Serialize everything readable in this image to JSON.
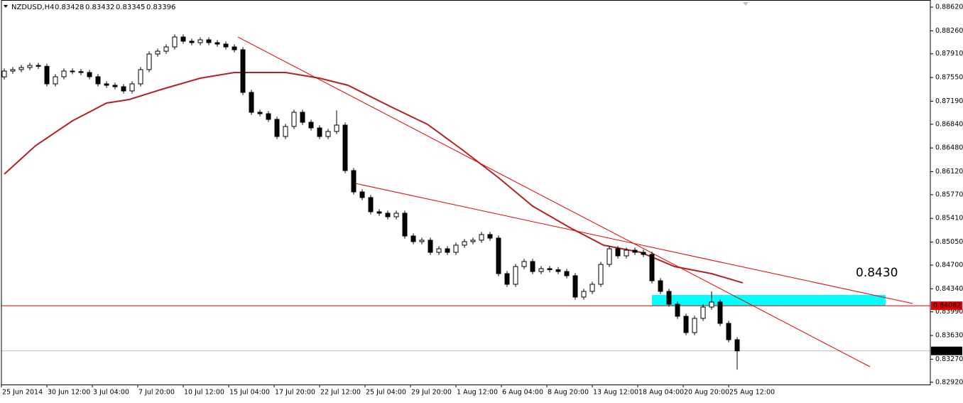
{
  "chart_data": {
    "type": "candlestick",
    "title": "NZDUSD,H4",
    "quote": [
      0.83428,
      0.83432,
      0.83345,
      0.83396
    ],
    "x": [
      1,
      4,
      7,
      10,
      13,
      16,
      19,
      22,
      25,
      28,
      31,
      34,
      37,
      40,
      43,
      46,
      49,
      52,
      55,
      58,
      61,
      64,
      67,
      70,
      73,
      76,
      79,
      82,
      85,
      88,
      91,
      94,
      97,
      100,
      103,
      106,
      109,
      112,
      115,
      118,
      121,
      124,
      127,
      130,
      133,
      136,
      139,
      142,
      145,
      148,
      151,
      154,
      157,
      160,
      163,
      166,
      169,
      172,
      175,
      178,
      181,
      184,
      187,
      190,
      193,
      196,
      199,
      202,
      205,
      208,
      211,
      214,
      217,
      220,
      223,
      226,
      229,
      232,
      235,
      238,
      241,
      244,
      247,
      250,
      253,
      256,
      259
    ],
    "open": [
      0.8756,
      0.87648,
      0.8767,
      0.87702,
      0.87734,
      0.8772,
      0.87454,
      0.87562,
      0.87648,
      0.8764,
      0.87626,
      0.87562,
      0.87454,
      0.87432,
      0.8741,
      0.87346,
      0.87454,
      0.8767,
      0.87907,
      0.8795,
      0.88015,
      0.88166,
      0.88102,
      0.8808,
      0.88123,
      0.8808,
      0.88058,
      0.88015,
      0.87972,
      0.87324,
      0.87022,
      0.87,
      0.86914,
      0.86654,
      0.86806,
      0.87022,
      0.8687,
      0.86784,
      0.86654,
      0.8673,
      0.86827,
      0.86136,
      0.85812,
      0.85726,
      0.8551,
      0.85488,
      0.85434,
      0.85488,
      0.85142,
      0.85056,
      0.85078,
      0.84894,
      0.84948,
      0.84894,
      0.85002,
      0.85056,
      0.85078,
      0.85164,
      0.8511,
      0.8457,
      0.84408,
      0.84678,
      0.84754,
      0.84602,
      0.84646,
      0.8463,
      0.84602,
      0.84538,
      0.84214,
      0.843,
      0.84408,
      0.8471,
      0.84948,
      0.8484,
      0.84926,
      0.84894,
      0.84862,
      0.84462,
      0.843,
      0.84106,
      0.83922,
      0.83674,
      0.8389,
      0.84062,
      0.84138,
      0.83814,
      0.83566
    ],
    "high": [
      0.87688,
      0.8771,
      0.87742,
      0.87774,
      0.87774,
      0.8776,
      0.87602,
      0.87688,
      0.87688,
      0.8768,
      0.87666,
      0.87602,
      0.87494,
      0.87472,
      0.8745,
      0.87494,
      0.8771,
      0.87947,
      0.8799,
      0.88055,
      0.88206,
      0.88206,
      0.88142,
      0.88163,
      0.88163,
      0.8812,
      0.88098,
      0.88055,
      0.88012,
      0.87364,
      0.87062,
      0.8704,
      0.86954,
      0.86846,
      0.87062,
      0.87062,
      0.8691,
      0.86824,
      0.8677,
      0.8705,
      0.86867,
      0.86176,
      0.85852,
      0.85766,
      0.8555,
      0.85528,
      0.85528,
      0.85528,
      0.85182,
      0.85118,
      0.85118,
      0.84988,
      0.84988,
      0.85042,
      0.85096,
      0.85118,
      0.85204,
      0.85204,
      0.8515,
      0.8461,
      0.84718,
      0.84794,
      0.84794,
      0.84686,
      0.84686,
      0.8467,
      0.84642,
      0.84578,
      0.8434,
      0.84448,
      0.8475,
      0.84988,
      0.84988,
      0.84966,
      0.84966,
      0.84934,
      0.84902,
      0.84502,
      0.8434,
      0.84146,
      0.83962,
      0.8393,
      0.84102,
      0.843,
      0.84178,
      0.83854,
      0.83606
    ],
    "low": [
      0.8752,
      0.87608,
      0.8763,
      0.87662,
      0.8768,
      0.87414,
      0.87414,
      0.87522,
      0.876,
      0.87586,
      0.87522,
      0.87414,
      0.87392,
      0.8737,
      0.87306,
      0.87306,
      0.87414,
      0.8763,
      0.87867,
      0.8791,
      0.87975,
      0.88062,
      0.8804,
      0.8804,
      0.8804,
      0.88018,
      0.87975,
      0.87932,
      0.87284,
      0.86982,
      0.8696,
      0.86874,
      0.86614,
      0.86614,
      0.86766,
      0.8683,
      0.86744,
      0.86614,
      0.86614,
      0.8669,
      0.86096,
      0.85772,
      0.85686,
      0.8547,
      0.85448,
      0.85394,
      0.85394,
      0.85102,
      0.85016,
      0.85016,
      0.84854,
      0.84854,
      0.84854,
      0.84854,
      0.84962,
      0.85016,
      0.85038,
      0.8507,
      0.8453,
      0.84368,
      0.84368,
      0.84638,
      0.84562,
      0.84562,
      0.8459,
      0.84562,
      0.84498,
      0.84174,
      0.84174,
      0.8426,
      0.84368,
      0.8467,
      0.848,
      0.848,
      0.84854,
      0.84822,
      0.84422,
      0.8426,
      0.84066,
      0.83882,
      0.83634,
      0.83634,
      0.8385,
      0.84022,
      0.83774,
      0.83526,
      0.8311
    ],
    "close": [
      0.87648,
      0.8767,
      0.87702,
      0.87734,
      0.8772,
      0.87454,
      0.87562,
      0.87648,
      0.8764,
      0.87626,
      0.87562,
      0.87454,
      0.87432,
      0.8741,
      0.87346,
      0.87454,
      0.8767,
      0.87907,
      0.8795,
      0.88015,
      0.88166,
      0.88102,
      0.8808,
      0.88123,
      0.8808,
      0.88058,
      0.88015,
      0.87972,
      0.87324,
      0.87022,
      0.87,
      0.86914,
      0.86654,
      0.86806,
      0.87022,
      0.8687,
      0.86784,
      0.86654,
      0.8673,
      0.86827,
      0.86136,
      0.85812,
      0.85726,
      0.8551,
      0.85488,
      0.85434,
      0.85488,
      0.85142,
      0.85056,
      0.85078,
      0.84894,
      0.84948,
      0.84894,
      0.85002,
      0.85056,
      0.85078,
      0.85164,
      0.8511,
      0.8457,
      0.84408,
      0.84678,
      0.84754,
      0.84602,
      0.84646,
      0.8463,
      0.84602,
      0.84538,
      0.84214,
      0.843,
      0.84408,
      0.8471,
      0.84948,
      0.8484,
      0.84926,
      0.84894,
      0.84862,
      0.84462,
      0.843,
      0.84106,
      0.83922,
      0.83674,
      0.8389,
      0.84062,
      0.84138,
      0.83814,
      0.83566,
      0.83396
    ],
    "up_color": "#ffffff",
    "down_color": "#000000",
    "wick_color": "#000000",
    "xlim": [
      0,
      327
    ],
    "xticks": [
      {
        "value": 0,
        "label": "25 Jun 2014"
      },
      {
        "value": 16,
        "label": "30 Jun 12:00"
      },
      {
        "value": 32,
        "label": "3 Jul 04:00"
      },
      {
        "value": 48,
        "label": "7 Jul 20:00"
      },
      {
        "value": 64,
        "label": "10 Jul 12:00"
      },
      {
        "value": 80,
        "label": "15 Jul 04:00"
      },
      {
        "value": 96,
        "label": "17 Jul 20:00"
      },
      {
        "value": 112,
        "label": "22 Jul 12:00"
      },
      {
        "value": 128,
        "label": "25 Jul 04:00"
      },
      {
        "value": 144,
        "label": "29 Jul 20:00"
      },
      {
        "value": 160,
        "label": "1 Aug 12:00"
      },
      {
        "value": 176,
        "label": "6 Aug 04:00"
      },
      {
        "value": 192,
        "label": "8 Aug 20:00"
      },
      {
        "value": 208,
        "label": "13 Aug 12:00"
      },
      {
        "value": 224,
        "label": "18 Aug 04:00"
      },
      {
        "value": 240,
        "label": "20 Aug 20:00"
      },
      {
        "value": 256,
        "label": "25 Aug 12:00"
      }
    ],
    "ylim": [
      0.82885,
      0.88728
    ],
    "yticks": [
      {
        "value": 0.8862,
        "label": "0.88620"
      },
      {
        "value": 0.8826,
        "label": "0.88260"
      },
      {
        "value": 0.8791,
        "label": "0.87910"
      },
      {
        "value": 0.8755,
        "label": "0.87550"
      },
      {
        "value": 0.8719,
        "label": "0.87190"
      },
      {
        "value": 0.8684,
        "label": "0.86840"
      },
      {
        "value": 0.8648,
        "label": "0.86480"
      },
      {
        "value": 0.8612,
        "label": "0.86120"
      },
      {
        "value": 0.8577,
        "label": "0.85770"
      },
      {
        "value": 0.8541,
        "label": "0.85410"
      },
      {
        "value": 0.8505,
        "label": "0.85050"
      },
      {
        "value": 0.847,
        "label": "0.84700"
      },
      {
        "value": 0.8434,
        "label": "0.84340"
      },
      {
        "value": 0.8399,
        "label": "0.83990"
      },
      {
        "value": 0.8363,
        "label": "0.83630"
      },
      {
        "value": 0.8327,
        "label": "0.83270"
      },
      {
        "value": 0.8292,
        "label": "0.82920"
      }
    ],
    "moving_average": {
      "color": "#b22222",
      "x": [
        1,
        12,
        25,
        37,
        45,
        57,
        70,
        82,
        100,
        112,
        122,
        137,
        150,
        162,
        175,
        187,
        200,
        212,
        225,
        237,
        250,
        261
      ],
      "values": [
        0.86082,
        0.86514,
        0.86892,
        0.87162,
        0.87216,
        0.87378,
        0.8754,
        0.87626,
        0.87626,
        0.8754,
        0.87432,
        0.87108,
        0.86838,
        0.8646,
        0.86028,
        0.85596,
        0.85272,
        0.85002,
        0.84894,
        0.84678,
        0.8457,
        0.8443
      ]
    },
    "trendlines": [
      {
        "color": "#e00000",
        "x": [
          83.25,
          305.75
        ],
        "values": [
          0.88166,
          0.83155
        ]
      },
      {
        "color": "#e00000",
        "x": [
          124.5,
          320.75
        ],
        "values": [
          0.85942,
          0.84116
        ]
      }
    ],
    "level": {
      "value": 0.84082,
      "color": "#e00000"
    },
    "last_price": {
      "value": 0.83396,
      "color": "#c0c0c0"
    },
    "zone": {
      "color": "#00ffff",
      "x": [
        229,
        311.25
      ],
      "values": [
        0.84082,
        0.84246
      ]
    },
    "annotation": {
      "text": "0.8430",
      "color": "#ff0000"
    }
  }
}
